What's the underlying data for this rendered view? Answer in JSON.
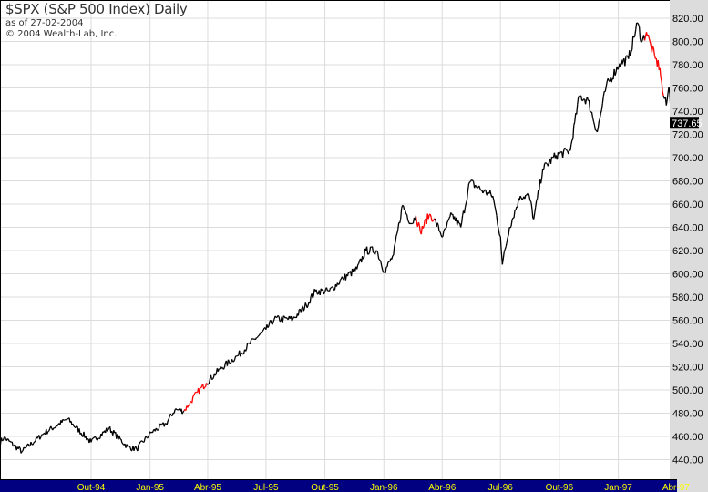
{
  "header": {
    "title": "$SPX (S&P 500 Index) Daily",
    "as_of": "as of 27-02-2004",
    "copyright": "© 2004 Wealth-Lab, Inc."
  },
  "colors": {
    "price": "#000000",
    "highlight": "#ff0000",
    "grid": "#dcdcdc",
    "axis_panel": "#dcdcdc",
    "date_bar": "#000080",
    "date_text": "#ffff00"
  },
  "chart_data": {
    "type": "line",
    "title": "$SPX (S&P 500 Index) Daily",
    "y_axis_position": "right",
    "ylim": [
      430,
      830
    ],
    "yticks": [
      440,
      460,
      480,
      500,
      520,
      540,
      560,
      580,
      600,
      620,
      640,
      660,
      680,
      700,
      720,
      740,
      760,
      780,
      800,
      820
    ],
    "xtick_labels": [
      "Out-94",
      "Jan-95",
      "Abr-95",
      "Jul-95",
      "Out-95",
      "Jan-96",
      "Abr-96",
      "Jul-96",
      "Out-96",
      "Jan-97",
      "Abr-97"
    ],
    "xtick_dates": [
      "1994-10-01",
      "1995-01-01",
      "1995-04-01",
      "1995-07-01",
      "1995-10-01",
      "1996-01-01",
      "1996-04-01",
      "1996-07-01",
      "1996-10-01",
      "1997-01-01",
      "1997-04-01"
    ],
    "grid": true,
    "last_price_label": "737.65",
    "highlight_ranges": [
      [
        "1995-02-23",
        "1995-03-30"
      ],
      [
        "1996-02-20",
        "1996-03-19"
      ],
      [
        "1997-02-10",
        "1997-03-11"
      ]
    ],
    "points": [
      [
        "1994-05-11",
        455
      ],
      [
        "1994-05-18",
        459
      ],
      [
        "1994-06-15",
        447
      ],
      [
        "1994-07-20",
        463
      ],
      [
        "1994-08-25",
        475
      ],
      [
        "1994-10-01",
        455
      ],
      [
        "1994-10-29",
        467
      ],
      [
        "1994-11-27",
        451
      ],
      [
        "1994-12-11",
        449
      ],
      [
        "1995-01-02",
        463
      ],
      [
        "1995-01-26",
        471
      ],
      [
        "1995-02-09",
        483
      ],
      [
        "1995-02-23",
        482
      ],
      [
        "1995-03-02",
        487
      ],
      [
        "1995-03-16",
        498
      ],
      [
        "1995-03-30",
        506
      ],
      [
        "1995-04-20",
        518
      ],
      [
        "1995-05-19",
        530
      ],
      [
        "1995-06-16",
        545
      ],
      [
        "1995-07-01",
        552
      ],
      [
        "1995-07-14",
        561
      ],
      [
        "1995-08-12",
        561
      ],
      [
        "1995-09-02",
        573
      ],
      [
        "1995-09-16",
        585
      ],
      [
        "1995-10-08",
        585
      ],
      [
        "1995-10-29",
        596
      ],
      [
        "1995-11-20",
        604
      ],
      [
        "1995-12-04",
        620
      ],
      [
        "1995-12-21",
        620
      ],
      [
        "1996-01-02",
        602
      ],
      [
        "1996-01-16",
        616
      ],
      [
        "1996-01-30",
        659
      ],
      [
        "1996-02-13",
        643
      ],
      [
        "1996-02-20",
        650
      ],
      [
        "1996-02-27",
        636
      ],
      [
        "1996-03-12",
        651
      ],
      [
        "1996-03-19",
        647
      ],
      [
        "1996-04-02",
        632
      ],
      [
        "1996-04-16",
        651
      ],
      [
        "1996-04-30",
        640
      ],
      [
        "1996-05-14",
        679
      ],
      [
        "1996-06-05",
        671
      ],
      [
        "1996-06-19",
        667
      ],
      [
        "1996-07-01",
        632
      ],
      [
        "1996-07-04",
        608
      ],
      [
        "1996-07-15",
        640
      ],
      [
        "1996-08-01",
        667
      ],
      [
        "1996-08-15",
        667
      ],
      [
        "1996-08-22",
        647
      ],
      [
        "1996-09-05",
        690
      ],
      [
        "1996-09-26",
        702
      ],
      [
        "1996-10-18",
        706
      ],
      [
        "1996-11-01",
        753
      ],
      [
        "1996-11-15",
        749
      ],
      [
        "1996-11-29",
        722
      ],
      [
        "1996-12-13",
        761
      ],
      [
        "1997-01-03",
        781
      ],
      [
        "1997-01-17",
        785
      ],
      [
        "1997-01-31",
        816
      ],
      [
        "1997-02-07",
        800
      ],
      [
        "1997-02-14",
        808
      ],
      [
        "1997-02-21",
        796
      ],
      [
        "1997-02-28",
        785
      ],
      [
        "1997-03-07",
        777
      ],
      [
        "1997-03-11",
        757
      ],
      [
        "1997-03-17",
        745
      ],
      [
        "1997-03-21",
        761
      ],
      [
        "1997-03-25",
        737.65
      ]
    ]
  }
}
